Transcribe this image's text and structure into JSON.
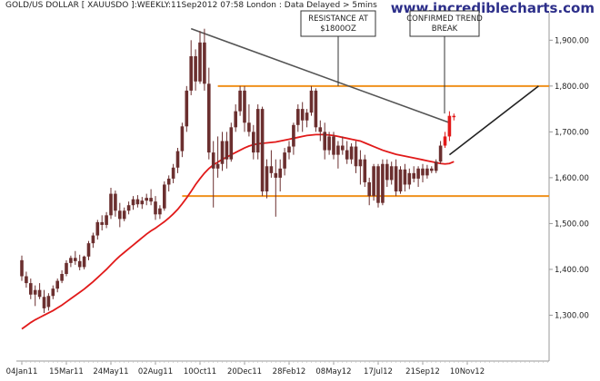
{
  "header": {
    "title": "GOLD/US DOLLAR [ XAUUSDO ]:WEEKLY:11Sep2012 07:58 London : Data Delayed > 5mins",
    "site": "www.incrediblecharts.com"
  },
  "annotations": [
    {
      "id": "resistance",
      "lines": [
        "RESISTANCE AT",
        "$1800OZ"
      ]
    },
    {
      "id": "breakout",
      "lines": [
        "CONFIRMED TREND",
        "BREAK"
      ]
    }
  ],
  "colors": {
    "candle": "#6b2f2f",
    "ma": "#e11a1a",
    "horizontal": "#f0911c",
    "trendline": "#555555",
    "projection": "#222222",
    "axis": "#999999",
    "text": "#222222",
    "site": "#2d2f8a"
  },
  "chart_data": {
    "type": "candlestick",
    "x_ticks": [
      "04Jan11",
      "15Mar11",
      "24May11",
      "02Aug11",
      "10Oct11",
      "20Dec11",
      "28Feb12",
      "08May12",
      "17Jul12",
      "21Sep12",
      "10Nov12"
    ],
    "y_ticks": [
      1300,
      1400,
      1500,
      1600,
      1700,
      1800,
      1900
    ],
    "y_tick_labels": [
      "1,300.00",
      "1,400.00",
      "1,500.00",
      "1,600.00",
      "1,700.00",
      "1,800.00",
      "1,900.00"
    ],
    "ylim": [
      1200,
      1960
    ],
    "grid": false,
    "weeks": 98,
    "candles": [
      [
        1420,
        1430,
        1375,
        1385
      ],
      [
        1385,
        1395,
        1360,
        1370
      ],
      [
        1370,
        1380,
        1335,
        1345
      ],
      [
        1345,
        1365,
        1320,
        1355
      ],
      [
        1355,
        1370,
        1335,
        1340
      ],
      [
        1340,
        1355,
        1305,
        1315
      ],
      [
        1318,
        1348,
        1310,
        1342
      ],
      [
        1342,
        1365,
        1335,
        1358
      ],
      [
        1358,
        1380,
        1350,
        1375
      ],
      [
        1375,
        1398,
        1370,
        1390
      ],
      [
        1390,
        1420,
        1385,
        1414
      ],
      [
        1414,
        1430,
        1405,
        1425
      ],
      [
        1425,
        1440,
        1410,
        1418
      ],
      [
        1418,
        1432,
        1398,
        1405
      ],
      [
        1405,
        1430,
        1400,
        1428
      ],
      [
        1428,
        1462,
        1420,
        1457
      ],
      [
        1457,
        1480,
        1447,
        1474
      ],
      [
        1474,
        1508,
        1465,
        1503
      ],
      [
        1503,
        1518,
        1485,
        1497
      ],
      [
        1497,
        1525,
        1490,
        1518
      ],
      [
        1518,
        1578,
        1510,
        1565
      ],
      [
        1565,
        1572,
        1515,
        1528
      ],
      [
        1528,
        1545,
        1492,
        1510
      ],
      [
        1510,
        1535,
        1505,
        1528
      ],
      [
        1528,
        1548,
        1520,
        1540
      ],
      [
        1540,
        1560,
        1530,
        1553
      ],
      [
        1553,
        1562,
        1535,
        1542
      ],
      [
        1542,
        1558,
        1532,
        1550
      ],
      [
        1550,
        1565,
        1540,
        1556
      ],
      [
        1556,
        1575,
        1540,
        1548
      ],
      [
        1548,
        1560,
        1508,
        1520
      ],
      [
        1520,
        1540,
        1510,
        1533
      ],
      [
        1533,
        1592,
        1528,
        1585
      ],
      [
        1585,
        1605,
        1570,
        1598
      ],
      [
        1598,
        1630,
        1588,
        1622
      ],
      [
        1622,
        1665,
        1610,
        1658
      ],
      [
        1658,
        1720,
        1645,
        1712
      ],
      [
        1712,
        1800,
        1700,
        1790
      ],
      [
        1790,
        1900,
        1780,
        1865
      ],
      [
        1865,
        1880,
        1790,
        1810
      ],
      [
        1810,
        1920,
        1805,
        1895
      ],
      [
        1895,
        1925,
        1790,
        1805
      ],
      [
        1805,
        1840,
        1640,
        1655
      ],
      [
        1655,
        1680,
        1535,
        1620
      ],
      [
        1620,
        1690,
        1600,
        1630
      ],
      [
        1630,
        1700,
        1615,
        1680
      ],
      [
        1680,
        1700,
        1620,
        1640
      ],
      [
        1640,
        1720,
        1635,
        1710
      ],
      [
        1710,
        1760,
        1700,
        1745
      ],
      [
        1745,
        1800,
        1735,
        1790
      ],
      [
        1790,
        1800,
        1700,
        1720
      ],
      [
        1720,
        1760,
        1690,
        1700
      ],
      [
        1700,
        1715,
        1640,
        1655
      ],
      [
        1655,
        1760,
        1640,
        1750
      ],
      [
        1750,
        1755,
        1560,
        1570
      ],
      [
        1570,
        1640,
        1555,
        1625
      ],
      [
        1625,
        1660,
        1600,
        1610
      ],
      [
        1610,
        1640,
        1515,
        1600
      ],
      [
        1600,
        1640,
        1570,
        1620
      ],
      [
        1620,
        1665,
        1605,
        1655
      ],
      [
        1655,
        1680,
        1640,
        1668
      ],
      [
        1668,
        1720,
        1650,
        1715
      ],
      [
        1715,
        1760,
        1700,
        1750
      ],
      [
        1750,
        1765,
        1700,
        1725
      ],
      [
        1725,
        1750,
        1710,
        1742
      ],
      [
        1742,
        1800,
        1735,
        1790
      ],
      [
        1790,
        1795,
        1700,
        1710
      ],
      [
        1710,
        1725,
        1680,
        1700
      ],
      [
        1700,
        1720,
        1640,
        1660
      ],
      [
        1660,
        1700,
        1650,
        1690
      ],
      [
        1690,
        1700,
        1640,
        1650
      ],
      [
        1650,
        1680,
        1620,
        1670
      ],
      [
        1670,
        1690,
        1650,
        1660
      ],
      [
        1660,
        1680,
        1630,
        1640
      ],
      [
        1640,
        1675,
        1630,
        1668
      ],
      [
        1668,
        1680,
        1610,
        1625
      ],
      [
        1625,
        1660,
        1585,
        1640
      ],
      [
        1640,
        1650,
        1580,
        1590
      ],
      [
        1590,
        1600,
        1540,
        1560
      ],
      [
        1560,
        1630,
        1550,
        1625
      ],
      [
        1625,
        1630,
        1535,
        1545
      ],
      [
        1545,
        1640,
        1540,
        1630
      ],
      [
        1630,
        1640,
        1580,
        1595
      ],
      [
        1595,
        1635,
        1585,
        1625
      ],
      [
        1625,
        1640,
        1560,
        1570
      ],
      [
        1570,
        1625,
        1565,
        1618
      ],
      [
        1618,
        1630,
        1570,
        1585
      ],
      [
        1585,
        1620,
        1575,
        1610
      ],
      [
        1610,
        1625,
        1590,
        1598
      ],
      [
        1598,
        1625,
        1580,
        1620
      ],
      [
        1620,
        1630,
        1590,
        1605
      ],
      [
        1605,
        1628,
        1598,
        1620
      ],
      [
        1620,
        1625,
        1610,
        1615
      ],
      [
        1615,
        1640,
        1610,
        1635
      ],
      [
        1635,
        1680,
        1630,
        1670
      ],
      [
        1670,
        1700,
        1665,
        1690
      ],
      [
        1690,
        1745,
        1680,
        1735
      ],
      [
        1735,
        1740,
        1725,
        1732
      ]
    ],
    "moving_average": [
      1270,
      1277,
      1284,
      1290,
      1295,
      1300,
      1305,
      1310,
      1316,
      1322,
      1329,
      1336,
      1343,
      1350,
      1357,
      1365,
      1373,
      1382,
      1391,
      1400,
      1410,
      1420,
      1429,
      1437,
      1445,
      1453,
      1461,
      1469,
      1477,
      1484,
      1490,
      1497,
      1504,
      1512,
      1521,
      1531,
      1543,
      1556,
      1570,
      1585,
      1598,
      1610,
      1620,
      1628,
      1634,
      1640,
      1645,
      1650,
      1655,
      1660,
      1665,
      1669,
      1672,
      1674,
      1675,
      1676,
      1677,
      1678,
      1680,
      1682,
      1684,
      1686,
      1688,
      1690,
      1692,
      1693,
      1694,
      1694,
      1694,
      1693,
      1692,
      1690,
      1688,
      1686,
      1684,
      1682,
      1680,
      1676,
      1672,
      1668,
      1664,
      1660,
      1657,
      1654,
      1651,
      1649,
      1647,
      1645,
      1643,
      1641,
      1639,
      1637,
      1635,
      1633,
      1631,
      1630,
      1631,
      1635
    ],
    "horizontal_lines": [
      {
        "value": 1800,
        "from_week": 44,
        "to_week": "end"
      },
      {
        "value": 1560,
        "from_week": 36,
        "to_week": "end"
      }
    ],
    "trendline": {
      "from": [
        38,
        1925
      ],
      "to": [
        96,
        1720
      ]
    },
    "projection": {
      "from": [
        96,
        1650
      ],
      "to": [
        116,
        1800
      ]
    }
  }
}
